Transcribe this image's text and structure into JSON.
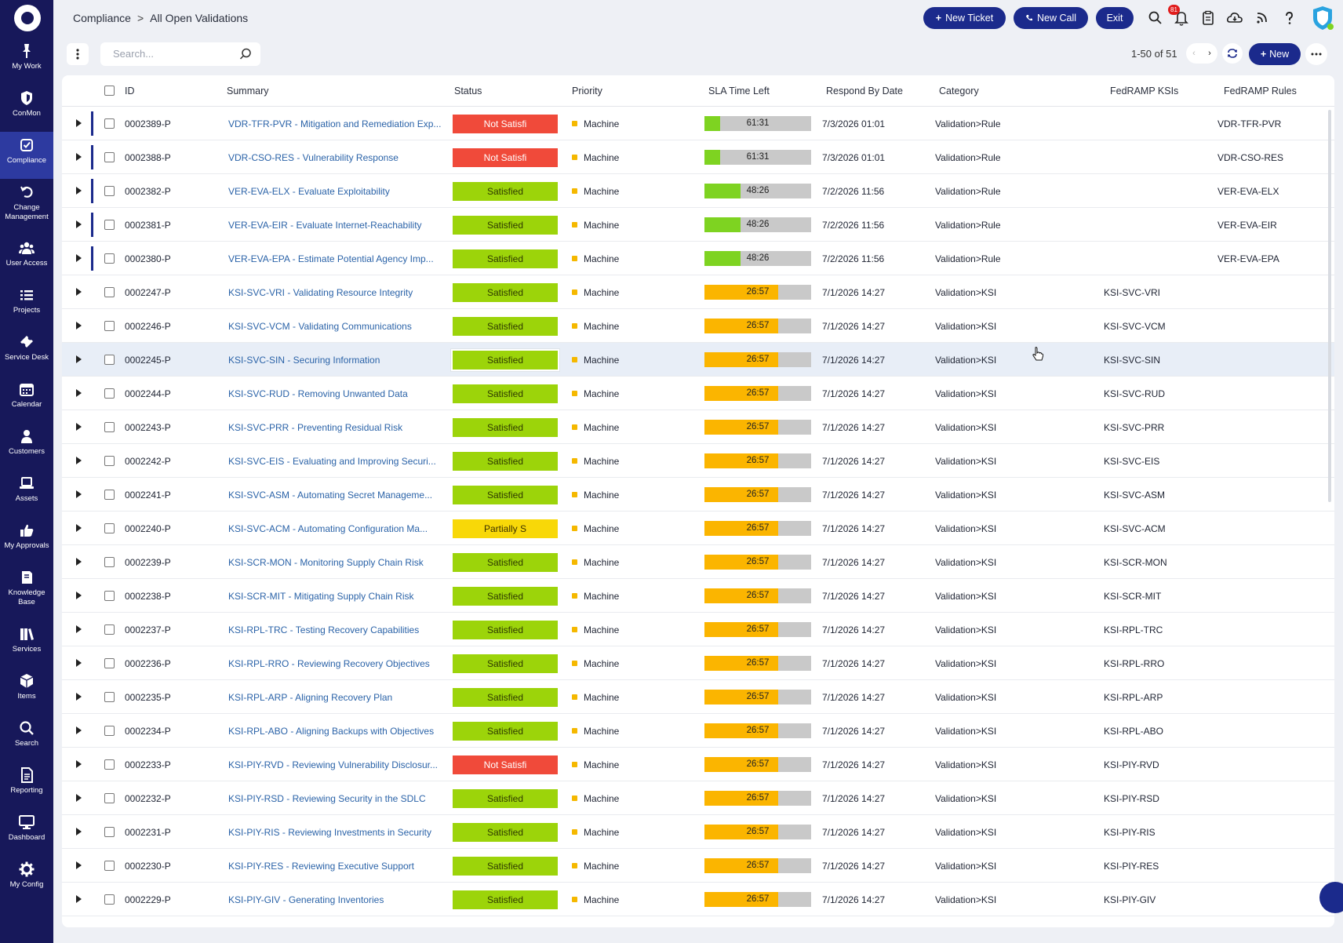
{
  "breadcrumb": {
    "section": "Compliance",
    "separator": ">",
    "page": "All Open Validations"
  },
  "header": {
    "new_ticket": "New Ticket",
    "new_call": "New Call",
    "exit": "Exit",
    "notification_count": "81",
    "icons": [
      "search-icon",
      "bell-icon",
      "clipboard-icon",
      "cloud-icon",
      "rss-icon",
      "help-icon",
      "shield-icon"
    ]
  },
  "sidebar": {
    "items": [
      {
        "label": "My Work",
        "icon": "pin-icon"
      },
      {
        "label": "ConMon",
        "icon": "shield-icon"
      },
      {
        "label": "Compliance",
        "icon": "check-square-icon",
        "active": true
      },
      {
        "label": "Change Management",
        "icon": "undo-icon"
      },
      {
        "label": "User Access",
        "icon": "users-icon"
      },
      {
        "label": "Projects",
        "icon": "list-icon"
      },
      {
        "label": "Service Desk",
        "icon": "ticket-icon"
      },
      {
        "label": "Calendar",
        "icon": "calendar-icon"
      },
      {
        "label": "Customers",
        "icon": "user-icon"
      },
      {
        "label": "Assets",
        "icon": "laptop-icon"
      },
      {
        "label": "My Approvals",
        "icon": "thumbs-up-icon"
      },
      {
        "label": "Knowledge Base",
        "icon": "book-icon"
      },
      {
        "label": "Services",
        "icon": "books-icon"
      },
      {
        "label": "Items",
        "icon": "cube-icon"
      },
      {
        "label": "Search",
        "icon": "search-icon"
      },
      {
        "label": "Reporting",
        "icon": "report-icon"
      },
      {
        "label": "Dashboard",
        "icon": "monitor-icon"
      },
      {
        "label": "My Config",
        "icon": "gear-icon"
      }
    ]
  },
  "toolbar": {
    "search_placeholder": "Search...",
    "pager": "1-50 of 51",
    "new_label": "New"
  },
  "table": {
    "columns": [
      "ID",
      "Summary",
      "Status",
      "Priority",
      "SLA Time Left",
      "Respond By Date",
      "Category",
      "FedRAMP KSIs",
      "FedRAMP Rules"
    ],
    "rows": [
      {
        "id": "0002389-P",
        "summary": "VDR-TFR-PVR - Mitigation and Remediation Exp...",
        "status": "Not Satisfi",
        "status_type": "not",
        "priority": "Machine",
        "sla": "61:31",
        "sla_fraction": 0.15,
        "sla_color": "#7ed321",
        "respond": "7/3/2026 01:01",
        "category": "Validation>Rule",
        "ksi": "",
        "rule": "VDR-TFR-PVR",
        "marker": true
      },
      {
        "id": "0002388-P",
        "summary": "VDR-CSO-RES - Vulnerability Response",
        "status": "Not Satisfi",
        "status_type": "not",
        "priority": "Machine",
        "sla": "61:31",
        "sla_fraction": 0.15,
        "sla_color": "#7ed321",
        "respond": "7/3/2026 01:01",
        "category": "Validation>Rule",
        "ksi": "",
        "rule": "VDR-CSO-RES",
        "marker": true
      },
      {
        "id": "0002382-P",
        "summary": "VER-EVA-ELX - Evaluate Exploitability",
        "status": "Satisfied",
        "status_type": "satisfied",
        "priority": "Machine",
        "sla": "48:26",
        "sla_fraction": 0.34,
        "sla_color": "#7ed321",
        "respond": "7/2/2026 11:56",
        "category": "Validation>Rule",
        "ksi": "",
        "rule": "VER-EVA-ELX",
        "marker": true
      },
      {
        "id": "0002381-P",
        "summary": "VER-EVA-EIR - Evaluate Internet-Reachability",
        "status": "Satisfied",
        "status_type": "satisfied",
        "priority": "Machine",
        "sla": "48:26",
        "sla_fraction": 0.34,
        "sla_color": "#7ed321",
        "respond": "7/2/2026 11:56",
        "category": "Validation>Rule",
        "ksi": "",
        "rule": "VER-EVA-EIR",
        "marker": true
      },
      {
        "id": "0002380-P",
        "summary": "VER-EVA-EPA - Estimate Potential Agency Imp...",
        "status": "Satisfied",
        "status_type": "satisfied",
        "priority": "Machine",
        "sla": "48:26",
        "sla_fraction": 0.34,
        "sla_color": "#7ed321",
        "respond": "7/2/2026 11:56",
        "category": "Validation>Rule",
        "ksi": "",
        "rule": "VER-EVA-EPA",
        "marker": true
      },
      {
        "id": "0002247-P",
        "summary": "KSI-SVC-VRI - Validating Resource Integrity",
        "status": "Satisfied",
        "status_type": "satisfied",
        "priority": "Machine",
        "sla": "26:57",
        "sla_fraction": 0.69,
        "sla_color": "#fbb500",
        "respond": "7/1/2026 14:27",
        "category": "Validation>KSI",
        "ksi": "KSI-SVC-VRI",
        "rule": ""
      },
      {
        "id": "0002246-P",
        "summary": "KSI-SVC-VCM - Validating Communications",
        "status": "Satisfied",
        "status_type": "satisfied",
        "priority": "Machine",
        "sla": "26:57",
        "sla_fraction": 0.69,
        "sla_color": "#fbb500",
        "respond": "7/1/2026 14:27",
        "category": "Validation>KSI",
        "ksi": "KSI-SVC-VCM",
        "rule": ""
      },
      {
        "id": "0002245-P",
        "summary": "KSI-SVC-SIN - Securing Information",
        "status": "Satisfied",
        "status_type": "satisfied",
        "priority": "Machine",
        "sla": "26:57",
        "sla_fraction": 0.69,
        "sla_color": "#fbb500",
        "respond": "7/1/2026 14:27",
        "category": "Validation>KSI",
        "ksi": "KSI-SVC-SIN",
        "rule": "",
        "highlight": true
      },
      {
        "id": "0002244-P",
        "summary": "KSI-SVC-RUD - Removing Unwanted Data",
        "status": "Satisfied",
        "status_type": "satisfied",
        "priority": "Machine",
        "sla": "26:57",
        "sla_fraction": 0.69,
        "sla_color": "#fbb500",
        "respond": "7/1/2026 14:27",
        "category": "Validation>KSI",
        "ksi": "KSI-SVC-RUD",
        "rule": ""
      },
      {
        "id": "0002243-P",
        "summary": "KSI-SVC-PRR - Preventing Residual Risk",
        "status": "Satisfied",
        "status_type": "satisfied",
        "priority": "Machine",
        "sla": "26:57",
        "sla_fraction": 0.69,
        "sla_color": "#fbb500",
        "respond": "7/1/2026 14:27",
        "category": "Validation>KSI",
        "ksi": "KSI-SVC-PRR",
        "rule": ""
      },
      {
        "id": "0002242-P",
        "summary": "KSI-SVC-EIS - Evaluating and Improving Securi...",
        "status": "Satisfied",
        "status_type": "satisfied",
        "priority": "Machine",
        "sla": "26:57",
        "sla_fraction": 0.69,
        "sla_color": "#fbb500",
        "respond": "7/1/2026 14:27",
        "category": "Validation>KSI",
        "ksi": "KSI-SVC-EIS",
        "rule": ""
      },
      {
        "id": "0002241-P",
        "summary": "KSI-SVC-ASM - Automating Secret Manageme...",
        "status": "Satisfied",
        "status_type": "satisfied",
        "priority": "Machine",
        "sla": "26:57",
        "sla_fraction": 0.69,
        "sla_color": "#fbb500",
        "respond": "7/1/2026 14:27",
        "category": "Validation>KSI",
        "ksi": "KSI-SVC-ASM",
        "rule": ""
      },
      {
        "id": "0002240-P",
        "summary": "KSI-SVC-ACM - Automating Configuration Ma...",
        "status": "Partially S",
        "status_type": "partial",
        "priority": "Machine",
        "sla": "26:57",
        "sla_fraction": 0.69,
        "sla_color": "#fbb500",
        "respond": "7/1/2026 14:27",
        "category": "Validation>KSI",
        "ksi": "KSI-SVC-ACM",
        "rule": ""
      },
      {
        "id": "0002239-P",
        "summary": "KSI-SCR-MON - Monitoring Supply Chain Risk",
        "status": "Satisfied",
        "status_type": "satisfied",
        "priority": "Machine",
        "sla": "26:57",
        "sla_fraction": 0.69,
        "sla_color": "#fbb500",
        "respond": "7/1/2026 14:27",
        "category": "Validation>KSI",
        "ksi": "KSI-SCR-MON",
        "rule": ""
      },
      {
        "id": "0002238-P",
        "summary": "KSI-SCR-MIT - Mitigating Supply Chain Risk",
        "status": "Satisfied",
        "status_type": "satisfied",
        "priority": "Machine",
        "sla": "26:57",
        "sla_fraction": 0.69,
        "sla_color": "#fbb500",
        "respond": "7/1/2026 14:27",
        "category": "Validation>KSI",
        "ksi": "KSI-SCR-MIT",
        "rule": ""
      },
      {
        "id": "0002237-P",
        "summary": "KSI-RPL-TRC - Testing Recovery Capabilities",
        "status": "Satisfied",
        "status_type": "satisfied",
        "priority": "Machine",
        "sla": "26:57",
        "sla_fraction": 0.69,
        "sla_color": "#fbb500",
        "respond": "7/1/2026 14:27",
        "category": "Validation>KSI",
        "ksi": "KSI-RPL-TRC",
        "rule": ""
      },
      {
        "id": "0002236-P",
        "summary": "KSI-RPL-RRO - Reviewing Recovery Objectives",
        "status": "Satisfied",
        "status_type": "satisfied",
        "priority": "Machine",
        "sla": "26:57",
        "sla_fraction": 0.69,
        "sla_color": "#fbb500",
        "respond": "7/1/2026 14:27",
        "category": "Validation>KSI",
        "ksi": "KSI-RPL-RRO",
        "rule": ""
      },
      {
        "id": "0002235-P",
        "summary": "KSI-RPL-ARP - Aligning Recovery Plan",
        "status": "Satisfied",
        "status_type": "satisfied",
        "priority": "Machine",
        "sla": "26:57",
        "sla_fraction": 0.69,
        "sla_color": "#fbb500",
        "respond": "7/1/2026 14:27",
        "category": "Validation>KSI",
        "ksi": "KSI-RPL-ARP",
        "rule": ""
      },
      {
        "id": "0002234-P",
        "summary": "KSI-RPL-ABO - Aligning Backups with Objectives",
        "status": "Satisfied",
        "status_type": "satisfied",
        "priority": "Machine",
        "sla": "26:57",
        "sla_fraction": 0.69,
        "sla_color": "#fbb500",
        "respond": "7/1/2026 14:27",
        "category": "Validation>KSI",
        "ksi": "KSI-RPL-ABO",
        "rule": ""
      },
      {
        "id": "0002233-P",
        "summary": "KSI-PIY-RVD - Reviewing Vulnerability Disclosur...",
        "status": "Not Satisfi",
        "status_type": "not",
        "priority": "Machine",
        "sla": "26:57",
        "sla_fraction": 0.69,
        "sla_color": "#fbb500",
        "respond": "7/1/2026 14:27",
        "category": "Validation>KSI",
        "ksi": "KSI-PIY-RVD",
        "rule": ""
      },
      {
        "id": "0002232-P",
        "summary": "KSI-PIY-RSD - Reviewing Security in the SDLC",
        "status": "Satisfied",
        "status_type": "satisfied",
        "priority": "Machine",
        "sla": "26:57",
        "sla_fraction": 0.69,
        "sla_color": "#fbb500",
        "respond": "7/1/2026 14:27",
        "category": "Validation>KSI",
        "ksi": "KSI-PIY-RSD",
        "rule": ""
      },
      {
        "id": "0002231-P",
        "summary": "KSI-PIY-RIS - Reviewing Investments in Security",
        "status": "Satisfied",
        "status_type": "satisfied",
        "priority": "Machine",
        "sla": "26:57",
        "sla_fraction": 0.69,
        "sla_color": "#fbb500",
        "respond": "7/1/2026 14:27",
        "category": "Validation>KSI",
        "ksi": "KSI-PIY-RIS",
        "rule": ""
      },
      {
        "id": "0002230-P",
        "summary": "KSI-PIY-RES - Reviewing Executive Support",
        "status": "Satisfied",
        "status_type": "satisfied",
        "priority": "Machine",
        "sla": "26:57",
        "sla_fraction": 0.69,
        "sla_color": "#fbb500",
        "respond": "7/1/2026 14:27",
        "category": "Validation>KSI",
        "ksi": "KSI-PIY-RES",
        "rule": ""
      },
      {
        "id": "0002229-P",
        "summary": "KSI-PIY-GIV - Generating Inventories",
        "status": "Satisfied",
        "status_type": "satisfied",
        "priority": "Machine",
        "sla": "26:57",
        "sla_fraction": 0.69,
        "sla_color": "#fbb500",
        "respond": "7/1/2026 14:27",
        "category": "Validation>KSI",
        "ksi": "KSI-PIY-GIV",
        "rule": ""
      }
    ]
  }
}
